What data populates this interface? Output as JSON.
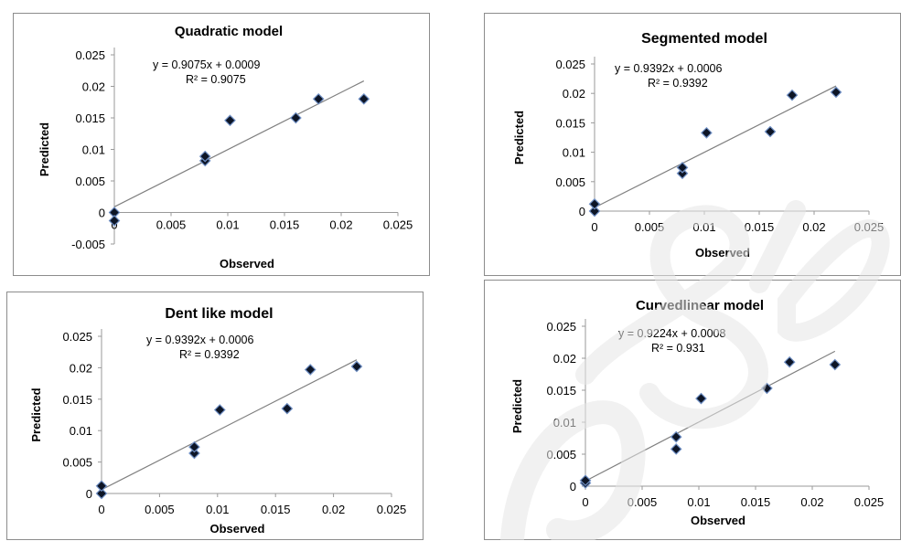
{
  "chart_data": [
    {
      "type": "scatter",
      "title": "Quadratic model",
      "xlabel": "Observed",
      "ylabel": "Predicted",
      "equation": "y = 0.9075x + 0.0009",
      "r_squared": "R² = 0.9075",
      "xlim": [
        0,
        0.025
      ],
      "ylim": [
        -0.005,
        0.025
      ],
      "x_ticks": [
        "0",
        "0.005",
        "0.01",
        "0.015",
        "0.02",
        "0.025"
      ],
      "y_ticks": [
        "-0.005",
        "0",
        "0.005",
        "0.01",
        "0.015",
        "0.02",
        "0.025"
      ],
      "points": [
        [
          0,
          0
        ],
        [
          0,
          -0.0013
        ],
        [
          0.008,
          0.0082
        ],
        [
          0.008,
          0.0089
        ],
        [
          0.0102,
          0.0146
        ],
        [
          0.016,
          0.015
        ],
        [
          0.018,
          0.018
        ],
        [
          0.022,
          0.018
        ]
      ],
      "trendline": {
        "slope": 0.9075,
        "intercept": 0.0009,
        "x_range": [
          0,
          0.022
        ]
      },
      "grid": false,
      "legend": "none"
    },
    {
      "type": "scatter",
      "title": "Segmented model",
      "xlabel": "Observed",
      "ylabel": "Predicted",
      "equation": "y = 0.9392x + 0.0006",
      "r_squared": "R² = 0.9392",
      "xlim": [
        0,
        0.025
      ],
      "ylim": [
        0,
        0.025
      ],
      "x_ticks": [
        "0",
        "0.005",
        "0.01",
        "0.015",
        "0.02",
        "0.025"
      ],
      "y_ticks": [
        "0",
        "0.005",
        "0.01",
        "0.015",
        "0.02",
        "0.025"
      ],
      "points": [
        [
          0,
          0
        ],
        [
          0,
          0.0012
        ],
        [
          0.008,
          0.0064
        ],
        [
          0.008,
          0.0074
        ],
        [
          0.0102,
          0.0133
        ],
        [
          0.016,
          0.0135
        ],
        [
          0.018,
          0.0197
        ],
        [
          0.022,
          0.0202
        ]
      ],
      "trendline": {
        "slope": 0.9392,
        "intercept": 0.0006,
        "x_range": [
          0,
          0.022
        ]
      },
      "grid": false,
      "legend": "none"
    },
    {
      "type": "scatter",
      "title": "Dent like model",
      "xlabel": "Observed",
      "ylabel": "Predicted",
      "equation": "y = 0.9392x + 0.0006",
      "r_squared": "R² = 0.9392",
      "xlim": [
        0,
        0.025
      ],
      "ylim": [
        0,
        0.025
      ],
      "x_ticks": [
        "0",
        "0.005",
        "0.01",
        "0.015",
        "0.02",
        "0.025"
      ],
      "y_ticks": [
        "0",
        "0.005",
        "0.01",
        "0.015",
        "0.02",
        "0.025"
      ],
      "points": [
        [
          0,
          0
        ],
        [
          0,
          0.0012
        ],
        [
          0.008,
          0.0064
        ],
        [
          0.008,
          0.0074
        ],
        [
          0.0102,
          0.0133
        ],
        [
          0.016,
          0.0135
        ],
        [
          0.018,
          0.0197
        ],
        [
          0.022,
          0.0202
        ]
      ],
      "trendline": {
        "slope": 0.9392,
        "intercept": 0.0006,
        "x_range": [
          0,
          0.022
        ]
      },
      "grid": false,
      "legend": "none"
    },
    {
      "type": "scatter",
      "title": "Curvedlinear model",
      "xlabel": "Observed",
      "ylabel": "Predicted",
      "equation": "y = 0.9224x + 0.0008",
      "r_squared": "R² = 0.931",
      "xlim": [
        0,
        0.025
      ],
      "ylim": [
        0,
        0.025
      ],
      "x_ticks": [
        "0",
        "0.005",
        "0.01",
        "0.015",
        "0.02",
        "0.025"
      ],
      "y_ticks": [
        "0",
        "0.005",
        "0.01",
        "0.015",
        "0.02",
        "0.025"
      ],
      "y_tick_labels_shown": [
        "0",
        "0.005",
        "0.01",
        "0.015",
        "0.02",
        "0.025"
      ],
      "points": [
        [
          0,
          0.0005
        ],
        [
          0,
          0.0009
        ],
        [
          0.008,
          0.0058
        ],
        [
          0.008,
          0.0077
        ],
        [
          0.0102,
          0.0137
        ],
        [
          0.016,
          0.0153
        ],
        [
          0.018,
          0.0194
        ],
        [
          0.022,
          0.019
        ]
      ],
      "trendline": {
        "slope": 0.9224,
        "intercept": 0.0008,
        "x_range": [
          0,
          0.022
        ]
      },
      "grid": false,
      "legend": "none"
    }
  ],
  "colors": {
    "marker_fill": "#0d1526",
    "marker_stroke": "#6f8fc4",
    "trendline": "#7f7f7f",
    "axis": "#9a9a9a",
    "text": "#000000",
    "watermark": "#e6e6e6"
  }
}
